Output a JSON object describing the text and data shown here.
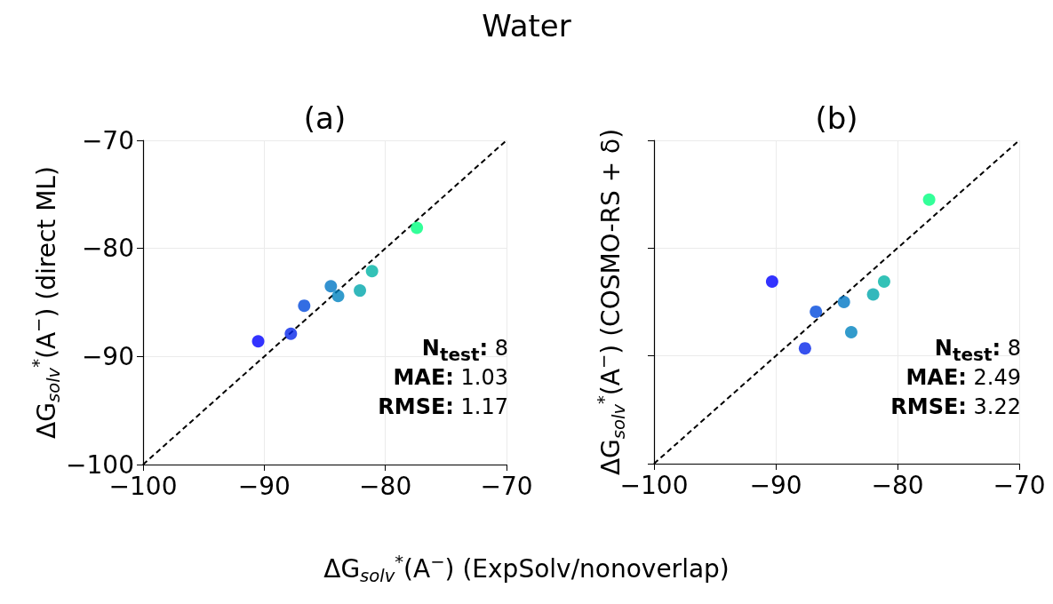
{
  "chart_data": [
    {
      "type": "scatter",
      "title": "Water",
      "subtitle": "(a)",
      "xlabel": "ΔG$_{solv}$$^{*}$(A$^{−}$) (ExpSolv/nonoverlap)",
      "ylabel": "ΔG$_{solv}$$^{*}$(A$^{−}$) (direct ML)",
      "xlim": [
        -100,
        -70
      ],
      "ylim": [
        -100,
        -70
      ],
      "xticks": [
        {
          "value": -100,
          "label": "−100"
        },
        {
          "value": -90,
          "label": "−90"
        },
        {
          "value": -80,
          "label": "−80"
        },
        {
          "value": -70,
          "label": "−70"
        }
      ],
      "yticks": [
        {
          "value": -100,
          "label": "−100"
        },
        {
          "value": -90,
          "label": "−90"
        },
        {
          "value": -80,
          "label": "−80"
        },
        {
          "value": -70,
          "label": "−70"
        }
      ],
      "grid": true,
      "series": [
        {
          "marker": "circle",
          "x": [
            -90.5,
            -87.8,
            -86.7,
            -84.5,
            -83.9,
            -82.1,
            -81.1,
            -77.4
          ],
          "values": [
            -88.6,
            -87.9,
            -85.3,
            -83.5,
            -84.4,
            -83.9,
            -82.1,
            -78.1
          ],
          "colors": [
            "#0000ff",
            "#0525ea",
            "#0049dc",
            "#0077c4",
            "#0082bf",
            "#00a6ab",
            "#00b3a5",
            "#00ff80"
          ]
        },
        {
          "type": "line",
          "x": [
            -100,
            -70
          ],
          "values": [
            -100,
            -70
          ],
          "color": "#000000",
          "line_style": "dashed"
        }
      ],
      "annotations": [
        "N$_{test}$: 8",
        "MAE: 1.03",
        "RMSE: 1.17"
      ]
    },
    {
      "type": "scatter",
      "subtitle": "(b)",
      "ylabel": "ΔG$_{solv}$$^{*}$(A$^{−}$) (COSMO-RS + δ)",
      "xlim": [
        -100,
        -70
      ],
      "ylim": [
        -100,
        -70
      ],
      "xticks": [
        {
          "value": -100,
          "label": "−100"
        },
        {
          "value": -90,
          "label": "−90"
        },
        {
          "value": -80,
          "label": "−80"
        },
        {
          "value": -70,
          "label": "−70"
        }
      ],
      "yticks": [
        {
          "value": -100,
          "label": null
        },
        {
          "value": -90,
          "label": null
        },
        {
          "value": -80,
          "label": null
        },
        {
          "value": -70,
          "label": null
        }
      ],
      "tick_labels": "x",
      "grid": true,
      "series": [
        {
          "marker": "circle",
          "x": [
            -90.3,
            -87.6,
            -86.7,
            -84.4,
            -83.8,
            -82.0,
            -81.1,
            -77.4
          ],
          "values": [
            -83.1,
            -89.3,
            -85.9,
            -85.0,
            -87.8,
            -84.3,
            -83.1,
            -75.5
          ],
          "colors": [
            "#0000ff",
            "#0525ea",
            "#0049dc",
            "#0077c4",
            "#0082bf",
            "#00a6ab",
            "#00b3a5",
            "#00ff80"
          ]
        },
        {
          "type": "line",
          "x": [
            -100,
            -70
          ],
          "values": [
            -100,
            -70
          ],
          "color": "#000000",
          "line_style": "dashed"
        }
      ],
      "annotations": [
        "N$_{test}$: 8",
        "MAE: 2.49",
        "RMSE: 3.22"
      ]
    }
  ]
}
